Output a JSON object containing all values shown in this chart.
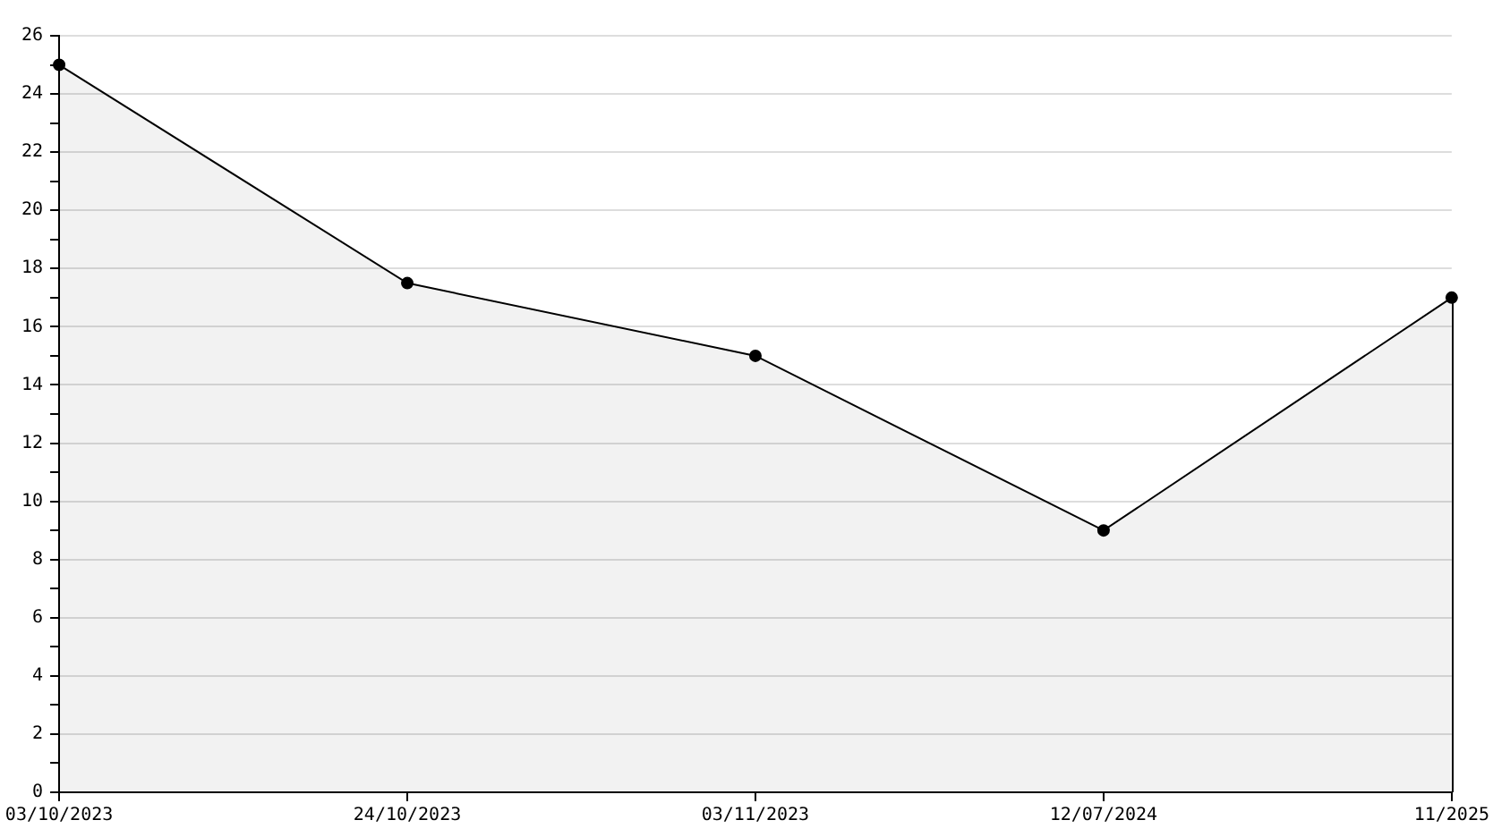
{
  "chart_data": {
    "type": "area",
    "categories": [
      "03/10/2023",
      "24/10/2023",
      "03/11/2023",
      "12/07/2024",
      "11/2025"
    ],
    "series": [
      {
        "color": "#000000",
        "values": [
          25,
          17.5,
          15,
          9,
          17
        ]
      }
    ],
    "marker": "circle",
    "grid": "y",
    "legend": false,
    "ylim": [
      0,
      26
    ],
    "yticks": [
      0,
      {
        "value": 1,
        "label": null
      },
      2,
      {
        "value": 3,
        "label": null
      },
      4,
      {
        "value": 5,
        "label": null
      },
      6,
      {
        "value": 7,
        "label": null
      },
      8,
      {
        "value": 9,
        "label": null
      },
      10,
      {
        "value": 11,
        "label": null
      },
      12,
      {
        "value": 13,
        "label": null
      },
      14,
      {
        "value": 15,
        "label": null
      },
      16,
      {
        "value": 17,
        "label": null
      },
      18,
      {
        "value": 19,
        "label": null
      },
      20,
      {
        "value": 21,
        "label": null
      },
      22,
      {
        "value": 23,
        "label": null
      },
      24,
      {
        "value": 25,
        "label": null
      },
      26
    ]
  }
}
